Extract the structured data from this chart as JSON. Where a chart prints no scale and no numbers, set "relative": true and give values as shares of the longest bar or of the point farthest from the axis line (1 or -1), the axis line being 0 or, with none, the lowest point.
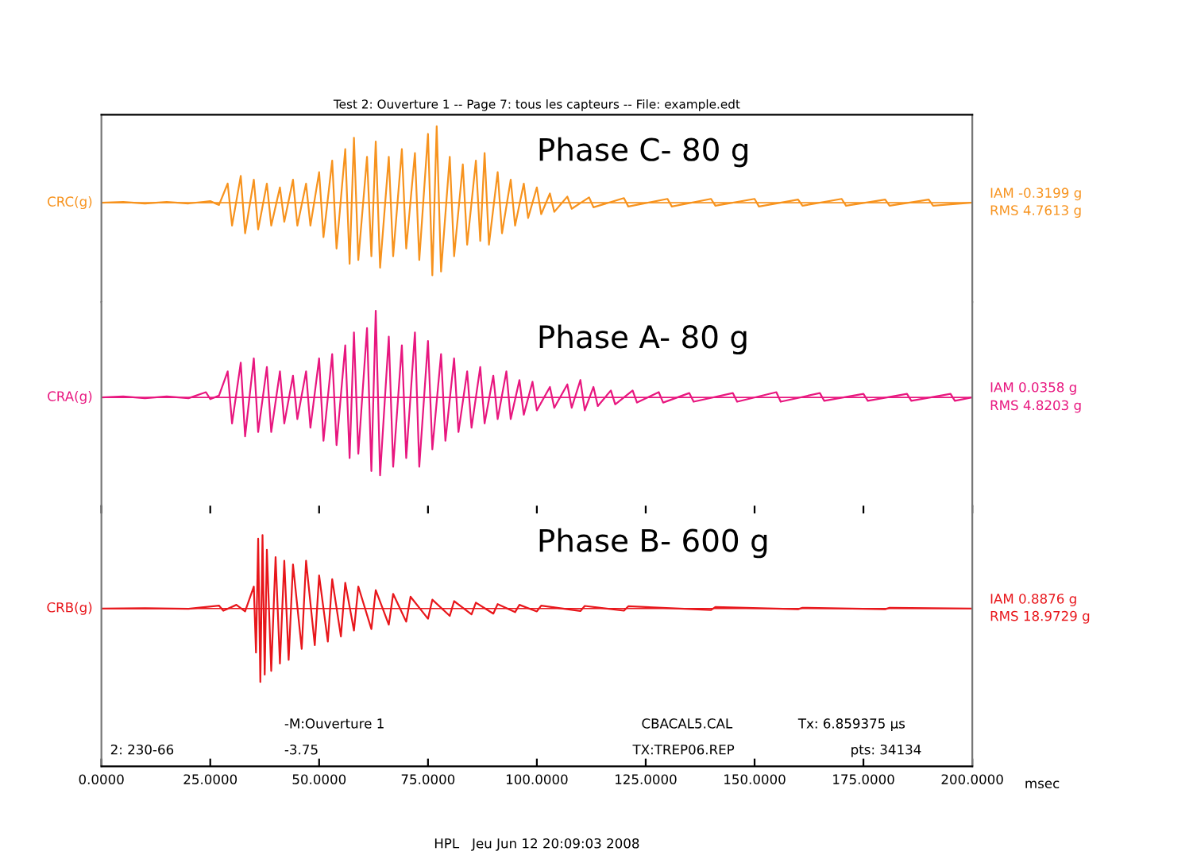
{
  "chart_data": [
    {
      "type": "line",
      "title": "Phase C- 80 g",
      "ylabel": "CRC(g)",
      "relative": true,
      "ref_lines": [
        {
          "axis": "y",
          "value": 0
        }
      ],
      "tick_labels": false,
      "xlim": [
        0,
        200
      ],
      "color": "#f7931e",
      "annotations": [
        "Test 2: Ouverture 1 -- Page 7: tous les capteurs -- File: example.edt",
        "IAM -0.3199 g",
        "RMS 4.7613 g"
      ],
      "x": [
        0,
        5,
        10,
        15,
        20,
        25,
        27,
        29,
        30,
        32,
        33,
        35,
        36,
        38,
        39,
        41,
        42,
        44,
        45,
        47,
        48,
        50,
        51,
        53,
        54,
        56,
        57,
        58,
        59,
        61,
        62,
        63,
        64,
        66,
        67,
        69,
        70,
        72,
        73,
        75,
        76,
        77,
        78,
        80,
        81,
        83,
        84,
        86,
        87,
        88,
        89,
        91,
        92,
        94,
        95,
        97,
        98,
        100,
        101,
        103,
        104,
        107,
        108,
        112,
        113,
        120,
        121,
        130,
        131,
        140,
        141,
        150,
        151,
        160,
        161,
        170,
        171,
        180,
        181,
        190,
        191,
        200
      ],
      "values": [
        0,
        0.01,
        -0.01,
        0.01,
        -0.01,
        0.02,
        -0.03,
        0.25,
        -0.3,
        0.35,
        -0.4,
        0.3,
        -0.35,
        0.25,
        -0.3,
        0.2,
        -0.25,
        0.3,
        -0.3,
        0.25,
        -0.3,
        0.4,
        -0.45,
        0.55,
        -0.6,
        0.7,
        -0.8,
        0.85,
        -0.75,
        0.6,
        -0.7,
        0.8,
        -0.85,
        0.6,
        -0.7,
        0.7,
        -0.6,
        0.65,
        -0.75,
        0.9,
        -0.95,
        1.0,
        -0.9,
        0.6,
        -0.7,
        0.5,
        -0.55,
        0.55,
        -0.5,
        0.65,
        -0.55,
        0.4,
        -0.4,
        0.3,
        -0.3,
        0.25,
        -0.2,
        0.2,
        -0.15,
        0.12,
        -0.12,
        0.08,
        -0.08,
        0.07,
        -0.06,
        0.06,
        -0.05,
        0.05,
        -0.05,
        0.05,
        -0.04,
        0.05,
        -0.05,
        0.04,
        -0.04,
        0.05,
        -0.04,
        0.04,
        -0.04,
        0.04,
        -0.04,
        0
      ]
    },
    {
      "type": "line",
      "title": "Phase A- 80 g",
      "ylabel": "CRA(g)",
      "relative": true,
      "ref_lines": [
        {
          "axis": "y",
          "value": 0
        }
      ],
      "tick_labels": false,
      "xlim": [
        0,
        200
      ],
      "color": "#e8177f",
      "annotations": [
        "IAM 0.0358 g",
        "RMS 4.8203 g"
      ],
      "x": [
        0,
        5,
        10,
        15,
        20,
        24,
        25,
        27,
        29,
        30,
        32,
        33,
        35,
        36,
        38,
        39,
        41,
        42,
        44,
        45,
        47,
        48,
        50,
        51,
        53,
        54,
        56,
        57,
        58,
        59,
        61,
        62,
        63,
        64,
        66,
        67,
        69,
        70,
        72,
        73,
        75,
        76,
        78,
        79,
        81,
        82,
        84,
        85,
        87,
        88,
        90,
        91,
        93,
        94,
        96,
        97,
        99,
        100,
        103,
        104,
        107,
        108,
        110,
        111,
        113,
        114,
        117,
        118,
        122,
        123,
        128,
        129,
        135,
        136,
        145,
        146,
        155,
        156,
        165,
        166,
        175,
        176,
        185,
        186,
        195,
        196,
        200
      ],
      "values": [
        0,
        0.01,
        -0.01,
        0.01,
        -0.01,
        0.06,
        -0.02,
        0.02,
        0.3,
        -0.3,
        0.4,
        -0.45,
        0.45,
        -0.4,
        0.35,
        -0.4,
        0.3,
        -0.3,
        0.25,
        -0.25,
        0.3,
        -0.35,
        0.45,
        -0.5,
        0.5,
        -0.55,
        0.6,
        -0.7,
        0.75,
        -0.65,
        0.8,
        -0.85,
        1.0,
        -0.9,
        0.7,
        -0.8,
        0.6,
        -0.7,
        0.75,
        -0.8,
        0.65,
        -0.6,
        0.5,
        -0.5,
        0.45,
        -0.4,
        0.3,
        -0.35,
        0.35,
        -0.3,
        0.25,
        -0.25,
        0.3,
        -0.25,
        0.2,
        -0.2,
        0.18,
        -0.15,
        0.12,
        -0.12,
        0.15,
        -0.12,
        0.2,
        -0.15,
        0.12,
        -0.1,
        0.08,
        -0.08,
        0.08,
        -0.06,
        0.06,
        -0.06,
        0.05,
        -0.05,
        0.05,
        -0.05,
        0.06,
        -0.05,
        0.05,
        -0.04,
        0.04,
        -0.04,
        0.04,
        -0.04,
        0.04,
        -0.04,
        0
      ]
    },
    {
      "type": "line",
      "title": "Phase B- 600 g",
      "ylabel": "CRB(g)",
      "relative": true,
      "ref_lines": [
        {
          "axis": "y",
          "value": 0
        }
      ],
      "tick_labels": "x",
      "xlim": [
        0,
        200
      ],
      "xlabel": "msec",
      "color": "#e8161b",
      "xticks": [
        {
          "value": 0,
          "label": "0.0000"
        },
        {
          "value": 25,
          "label": "25.0000"
        },
        {
          "value": 50,
          "label": "50.0000"
        },
        {
          "value": 75,
          "label": "75.0000"
        },
        {
          "value": 100,
          "label": "100.0000"
        },
        {
          "value": 125,
          "label": "125.0000"
        },
        {
          "value": 150,
          "label": "150.0000"
        },
        {
          "value": 175,
          "label": "175.0000"
        },
        {
          "value": 200,
          "label": "200.0000"
        }
      ],
      "annotations": [
        "IAM 0.8876 g",
        "RMS 18.9729 g",
        "-M:Ouverture 1",
        "CBACAL5.CAL",
        "Tx: 6.859375 µs",
        "2: 230-66",
        "-3.75",
        "TX:TREP06.REP",
        "pts: 34134",
        "HPL   Jeu Jun 12 20:09:03 2008"
      ],
      "x": [
        0,
        10,
        20,
        27,
        28,
        31,
        33,
        35,
        35.5,
        36,
        36.5,
        37,
        37.5,
        38,
        39,
        40,
        41,
        42,
        43,
        44,
        46,
        47,
        49,
        50,
        52,
        53,
        55,
        56,
        58,
        59,
        62,
        63,
        66,
        67,
        70,
        71,
        75,
        76,
        80,
        81,
        85,
        86,
        90,
        91,
        95,
        96,
        100,
        101,
        110,
        111,
        120,
        121,
        140,
        141,
        160,
        161,
        180,
        181,
        200
      ],
      "values": [
        0,
        0.005,
        -0.005,
        0.04,
        -0.03,
        0.05,
        -0.04,
        0.3,
        -0.6,
        0.95,
        -1.0,
        1.0,
        -0.9,
        0.8,
        -0.85,
        0.7,
        -0.75,
        0.65,
        -0.7,
        0.6,
        -0.55,
        0.65,
        -0.5,
        0.45,
        -0.45,
        0.4,
        -0.38,
        0.35,
        -0.3,
        0.3,
        -0.28,
        0.25,
        -0.22,
        0.2,
        -0.18,
        0.16,
        -0.14,
        0.12,
        -0.1,
        0.1,
        -0.08,
        0.08,
        -0.07,
        0.06,
        -0.05,
        0.05,
        -0.04,
        0.04,
        -0.035,
        0.035,
        -0.03,
        0.03,
        -0.02,
        0.02,
        -0.01,
        0.01,
        -0.01,
        0.01,
        0
      ]
    }
  ]
}
